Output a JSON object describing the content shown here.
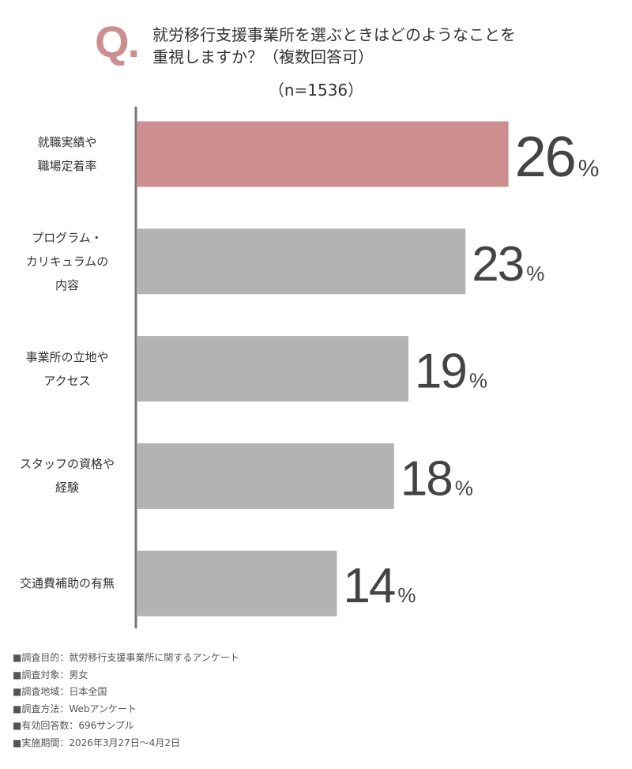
{
  "chart_data": {
    "type": "bar",
    "orientation": "horizontal",
    "title_mark": "Q.",
    "title": "就労移行支援事業所を選ぶときはどのようなことを\n重視しますか？（複数回答可）",
    "subtitle": "（n=1536）",
    "categories": [
      "就職実績や\n職場定着率",
      "プログラム・\nカリキュラムの\n内容",
      "事業所の立地や\nアクセス",
      "スタッフの資格や\n経験",
      "交通費補助の有無"
    ],
    "values": [
      26,
      23,
      19,
      18,
      14
    ],
    "unit": "%",
    "colors": [
      "#cd8e90",
      "#b3b3b3",
      "#b3b3b3",
      "#b3b3b3",
      "#b3b3b3"
    ],
    "notes": [
      "■調査目的：就労移行支援事業所に関するアンケート",
      "■調査対象：男女",
      "■調査地域：日本全国",
      "■調査方法：Webアンケート",
      "■有効回答数：696サンプル",
      "■実施期間：2026年3月27日〜4月2日"
    ]
  }
}
